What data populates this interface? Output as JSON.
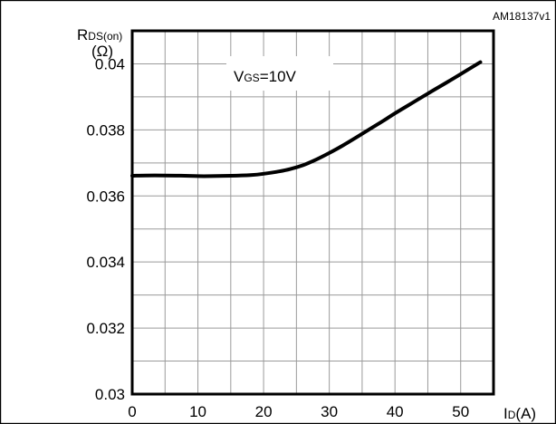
{
  "figure_id": "AM18137v1",
  "chart_data": {
    "type": "line",
    "title": "",
    "ylabel": {
      "main": "R",
      "sub": "DS(on)",
      "unit": "(Ω)"
    },
    "xlabel": {
      "main": "I",
      "sub": "D",
      "unit": "(A)"
    },
    "annotation": {
      "main": "V",
      "sub": "GS",
      "rest": "=10V"
    },
    "xlim": [
      0,
      55
    ],
    "ylim": [
      0.03,
      0.041
    ],
    "x_ticks": [
      0,
      10,
      20,
      30,
      40,
      50
    ],
    "x_tick_labels": [
      "0",
      "10",
      "20",
      "30",
      "40",
      "50"
    ],
    "y_ticks": [
      0.03,
      0.032,
      0.034,
      0.036,
      0.038,
      0.04
    ],
    "y_tick_labels": [
      "0.03",
      "0.032",
      "0.034",
      "0.036",
      "0.038",
      "0.04"
    ],
    "x_grid": [
      0,
      5,
      10,
      15,
      20,
      25,
      30,
      35,
      40,
      45,
      50,
      55
    ],
    "y_grid": [
      0.031,
      0.032,
      0.033,
      0.034,
      0.035,
      0.036,
      0.037,
      0.038,
      0.039,
      0.04
    ],
    "grid": true,
    "series": [
      {
        "x": [
          0,
          2,
          5,
          8,
          10,
          12,
          15,
          18,
          20,
          22,
          24,
          26,
          28,
          30,
          32,
          35,
          38,
          40,
          42,
          45,
          48,
          50,
          53
        ],
        "y": [
          0.03661,
          0.03662,
          0.03662,
          0.03661,
          0.0366,
          0.0366,
          0.03661,
          0.03663,
          0.03667,
          0.03673,
          0.03681,
          0.03693,
          0.0371,
          0.0373,
          0.03752,
          0.03788,
          0.03825,
          0.0385,
          0.03874,
          0.0391,
          0.03945,
          0.03969,
          0.04005
        ]
      }
    ]
  }
}
